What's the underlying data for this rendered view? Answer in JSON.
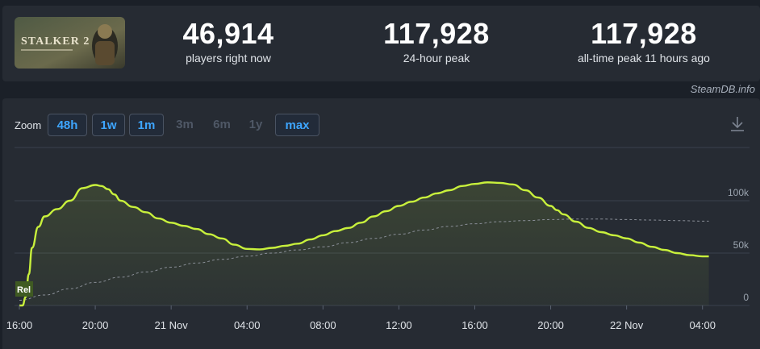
{
  "header": {
    "game_art_alt": "S.T.A.L.K.E.R. 2",
    "game_art_text": "STALKER 2",
    "stats": [
      {
        "value": "46,914",
        "label": "players right now"
      },
      {
        "value": "117,928",
        "label": "24-hour peak"
      },
      {
        "value": "117,928",
        "label": "all-time peak 11 hours ago"
      }
    ],
    "credit": "SteamDB.info"
  },
  "toolbar": {
    "zoom_label": "Zoom",
    "buttons": [
      {
        "label": "48h",
        "active": true
      },
      {
        "label": "1w",
        "active": true
      },
      {
        "label": "1m",
        "active": true
      },
      {
        "label": "3m",
        "active": false
      },
      {
        "label": "6m",
        "active": false
      },
      {
        "label": "1y",
        "active": false
      },
      {
        "label": "max",
        "active": true
      }
    ],
    "download_icon": "download-icon"
  },
  "chart_data": {
    "type": "line",
    "x_ticks": [
      "16:00",
      "20:00",
      "21 Nov",
      "04:00",
      "08:00",
      "12:00",
      "16:00",
      "20:00",
      "22 Nov",
      "04:00"
    ],
    "y_ticks": [
      "0",
      "50k",
      "100k"
    ],
    "y_max": 155000,
    "marker_label": "Rel",
    "colors": {
      "players": "#c8f03c",
      "average": "#8a8f98",
      "grid": "#3b424d"
    },
    "series": [
      {
        "key": "players",
        "x_hours": [
          0,
          0.25,
          0.5,
          0.75,
          1,
          1.5,
          2,
          3,
          4,
          5,
          6,
          6.5,
          7,
          7.5,
          8,
          9,
          10,
          11,
          12,
          13,
          14,
          15,
          16,
          17,
          18,
          19,
          20,
          21,
          22,
          23,
          24,
          25,
          26,
          27,
          28,
          29,
          30,
          31,
          32,
          33,
          34,
          35,
          36,
          37,
          38,
          39,
          40,
          41,
          42,
          42.5,
          43,
          44,
          45,
          46,
          47,
          48,
          49,
          50,
          51,
          52,
          53,
          54,
          54.5
        ],
        "values": [
          0,
          0,
          8000,
          30000,
          55000,
          75000,
          85000,
          92000,
          100000,
          112000,
          115000,
          114000,
          111000,
          106000,
          100000,
          94000,
          89000,
          83000,
          79000,
          76000,
          73000,
          68000,
          64000,
          58000,
          54000,
          53500,
          55000,
          57000,
          59000,
          63000,
          67000,
          71000,
          74000,
          79000,
          85000,
          90000,
          95000,
          99000,
          103000,
          107000,
          110000,
          114000,
          116000,
          117500,
          117000,
          115500,
          110000,
          103000,
          95000,
          91000,
          87000,
          80000,
          74000,
          70000,
          67000,
          64000,
          60000,
          56000,
          53000,
          50000,
          48000,
          46900,
          46900
        ]
      },
      {
        "key": "average",
        "x_hours": [
          0,
          2,
          4,
          6,
          8,
          10,
          12,
          14,
          16,
          18,
          20,
          22,
          24,
          26,
          28,
          30,
          32,
          34,
          36,
          38,
          40,
          42,
          44,
          46,
          48,
          50,
          52,
          54,
          54.5
        ],
        "values": [
          5000,
          10000,
          16000,
          22000,
          27000,
          32000,
          36500,
          40500,
          44000,
          47000,
          50000,
          53000,
          56000,
          60000,
          64000,
          68000,
          72000,
          75500,
          78000,
          80000,
          81000,
          82000,
          82500,
          82500,
          82000,
          81500,
          81000,
          80500,
          80500
        ]
      }
    ]
  }
}
